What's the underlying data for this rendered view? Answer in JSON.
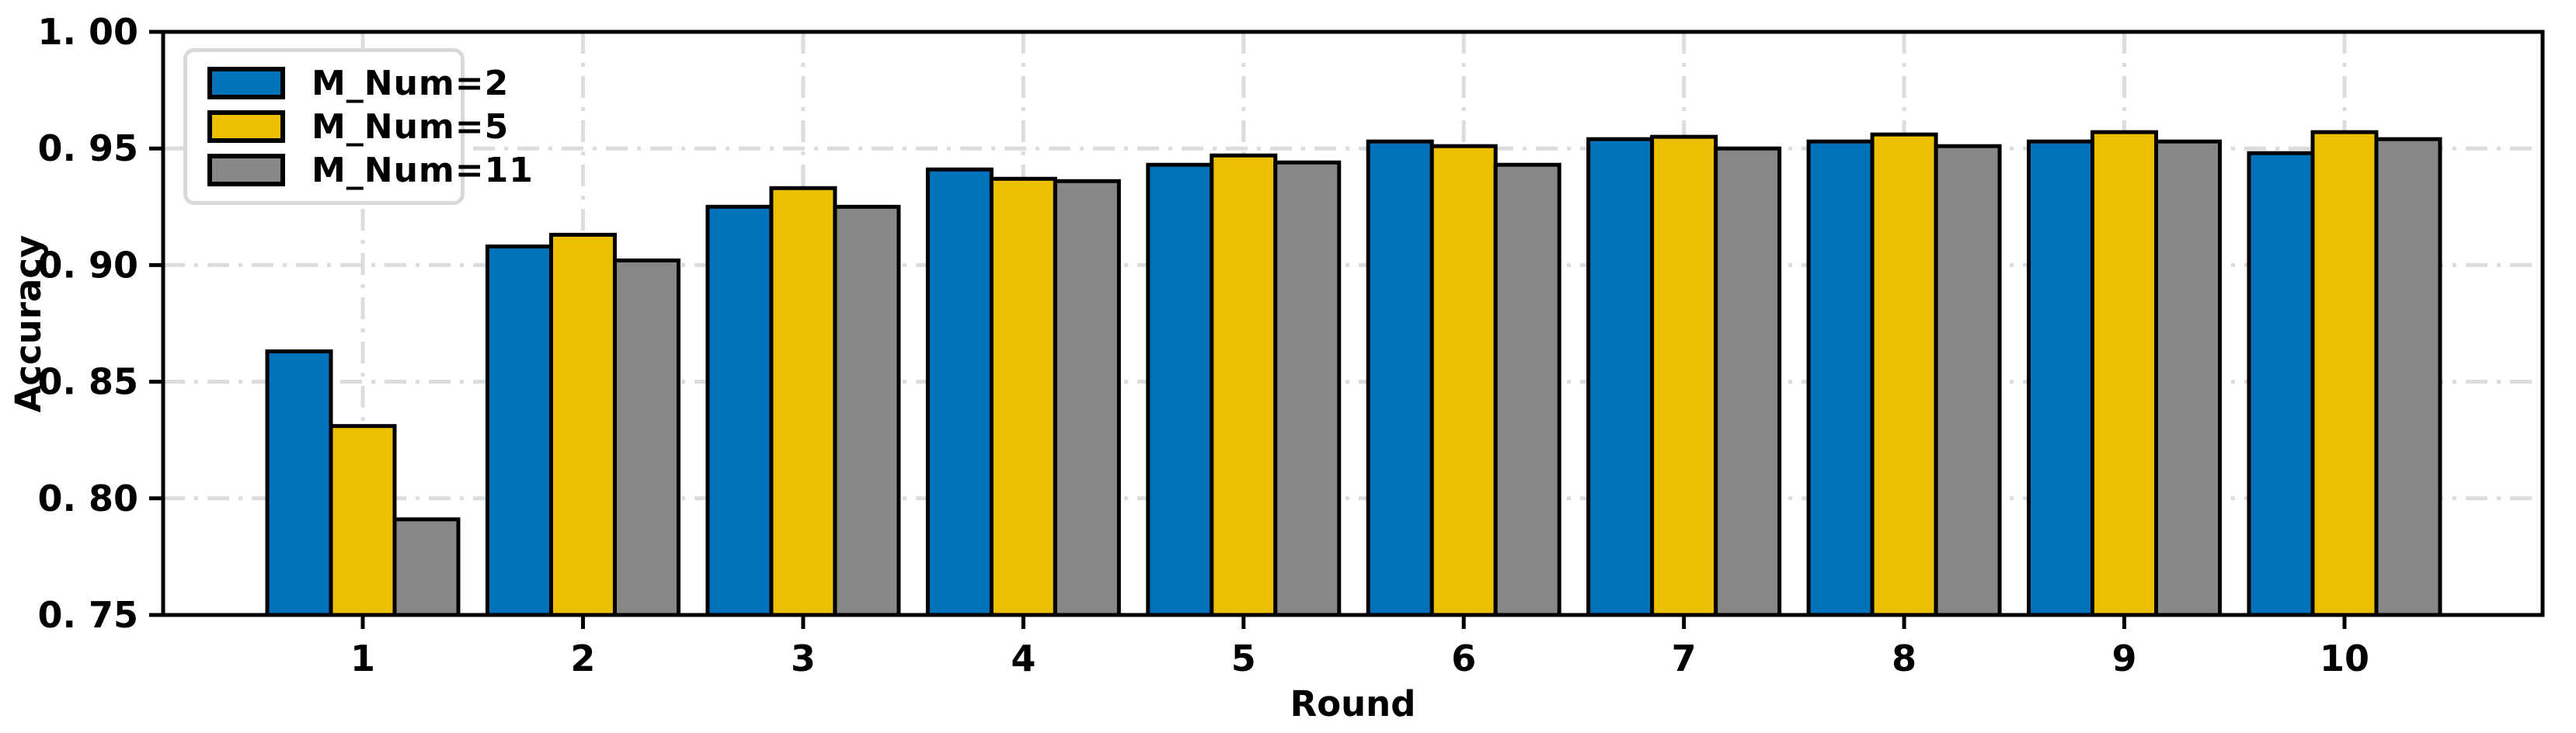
{
  "chart_data": {
    "type": "bar",
    "title": "",
    "xlabel": "Round",
    "ylabel": "Accuracy",
    "ylim": [
      0.75,
      1.0
    ],
    "grid": "dash-dot both axes",
    "legend_position": "upper left",
    "categories": [
      "1",
      "2",
      "3",
      "4",
      "5",
      "6",
      "7",
      "8",
      "9",
      "10"
    ],
    "yticks": [
      {
        "value": 0.75,
        "label": "0. 75"
      },
      {
        "value": 0.8,
        "label": "0. 80"
      },
      {
        "value": 0.85,
        "label": "0. 85"
      },
      {
        "value": 0.9,
        "label": "0. 90"
      },
      {
        "value": 0.95,
        "label": "0. 95"
      },
      {
        "value": 1.0,
        "label": "1. 00"
      }
    ],
    "series": [
      {
        "name": "M_Num=2",
        "color": "#0072BC",
        "edge_color": "#000000",
        "values": [
          0.863,
          0.908,
          0.925,
          0.941,
          0.943,
          0.953,
          0.954,
          0.953,
          0.953,
          0.948
        ]
      },
      {
        "name": "M_Num=5",
        "color": "#ECC000",
        "edge_color": "#000000",
        "values": [
          0.831,
          0.913,
          0.933,
          0.937,
          0.947,
          0.951,
          0.955,
          0.956,
          0.957,
          0.957
        ]
      },
      {
        "name": "M_Num=11",
        "color": "#878787",
        "edge_color": "#000000",
        "values": [
          0.791,
          0.902,
          0.925,
          0.936,
          0.944,
          0.943,
          0.95,
          0.951,
          0.953,
          0.954
        ]
      }
    ]
  },
  "colors": {
    "grid": "#dcdcdc",
    "axis": "#000000",
    "legend_border": "#d9d9d9",
    "background": "#ffffff"
  }
}
